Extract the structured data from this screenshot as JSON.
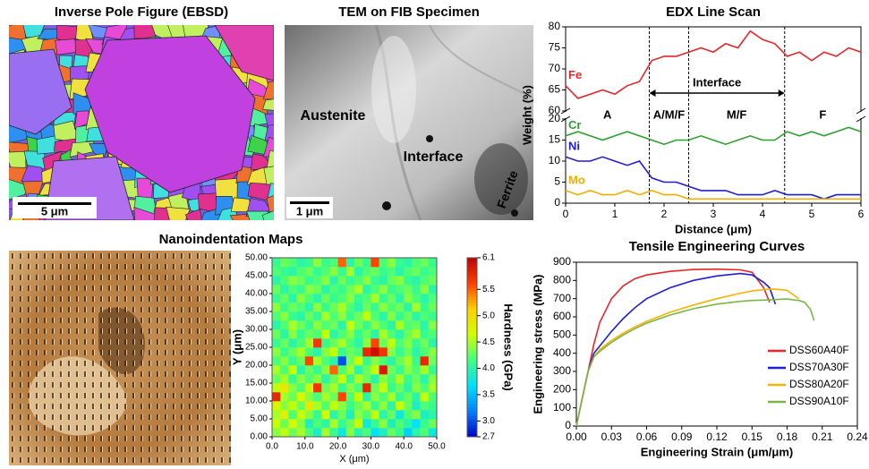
{
  "images": [
    {
      "title": "Inverse Pole Figure (EBSD)",
      "scale_bar": "5 μm"
    },
    {
      "title": "TEM on FIB Specimen",
      "labels": [
        "Austenite",
        "Interface",
        "Ferrite"
      ],
      "scale_bar": "1 μm"
    }
  ],
  "chart_data": [
    {
      "type": "line",
      "title": "EDX Line Scan",
      "xlabel": "Distance (μm)",
      "ylabel": "Weight (%)",
      "x": [
        0,
        0.25,
        0.5,
        0.75,
        1,
        1.25,
        1.5,
        1.75,
        2,
        2.25,
        2.5,
        2.75,
        3,
        3.25,
        3.5,
        3.75,
        4,
        4.25,
        4.5,
        4.75,
        5,
        5.25,
        5.5,
        5.75,
        6
      ],
      "xlim": [
        0,
        6
      ],
      "xticks": [
        0,
        1,
        2,
        3,
        4,
        5,
        6
      ],
      "ylim": [
        0,
        20
      ],
      "yticks": [
        0,
        5,
        10,
        15,
        20
      ],
      "y2lim": [
        60,
        80
      ],
      "y2ticks": [
        60,
        65,
        70,
        75,
        80
      ],
      "series": [
        {
          "name": "Fe",
          "color": "#e8262a",
          "axis": "y2",
          "values": [
            66,
            63,
            64,
            65,
            64,
            66,
            67,
            72,
            73,
            73,
            74,
            75,
            74,
            76,
            75,
            79,
            77,
            76,
            73,
            74,
            72,
            74,
            73,
            75,
            74
          ]
        },
        {
          "name": "Cr",
          "color": "#2ca02c",
          "values": [
            16,
            17,
            16,
            15,
            16,
            17,
            16,
            15,
            14,
            15,
            15,
            16,
            15,
            14,
            15,
            16,
            15,
            15,
            17,
            16,
            17,
            16,
            17,
            18,
            17
          ]
        },
        {
          "name": "Ni",
          "color": "#1f1fd6",
          "values": [
            11,
            10,
            10,
            11,
            10,
            9,
            10,
            6,
            5,
            5,
            4,
            3,
            3,
            3,
            2,
            2,
            2,
            3,
            2,
            2,
            2,
            1,
            2,
            2,
            2
          ]
        },
        {
          "name": "Mo",
          "color": "#f0b000",
          "values": [
            3,
            2,
            3,
            2,
            2,
            3,
            2,
            3,
            2,
            2,
            1,
            1,
            1,
            1,
            1,
            1,
            1,
            1,
            1,
            1,
            1,
            1,
            1,
            1,
            1
          ]
        }
      ],
      "boundaries": [
        1.7,
        2.5,
        4.45
      ],
      "regions": [
        "A",
        "A/M/F",
        "M/F",
        "F"
      ],
      "interface_label": "Interface"
    },
    {
      "type": "heatmap",
      "title": "Nanoindentation Maps",
      "xlabel": "X (μm)",
      "ylabel": "Y (μm)",
      "colorbar_label": "Hardness (GPa)",
      "xlim": [
        0,
        50
      ],
      "ylim": [
        0,
        50
      ],
      "xticks": [
        {
          "value": 0,
          "label": "0.0"
        },
        {
          "value": 10,
          "label": "10.0"
        },
        {
          "value": 20,
          "label": "20.0"
        },
        {
          "value": 30,
          "label": "30.0"
        },
        {
          "value": 40,
          "label": "40.0"
        },
        {
          "value": 50,
          "label": "50.0"
        }
      ],
      "yticks": [
        {
          "value": 0,
          "label": "0.00"
        },
        {
          "value": 5,
          "label": "5.00"
        },
        {
          "value": 10,
          "label": "10.00"
        },
        {
          "value": 15,
          "label": "15.00"
        },
        {
          "value": 20,
          "label": "20.00"
        },
        {
          "value": 25,
          "label": "25.00"
        },
        {
          "value": 30,
          "label": "30.00"
        },
        {
          "value": 35,
          "label": "35.00"
        },
        {
          "value": 40,
          "label": "40.00"
        },
        {
          "value": 45,
          "label": "45.00"
        },
        {
          "value": 50,
          "label": "50.00"
        }
      ],
      "clim": [
        2.7,
        6.1
      ],
      "cticks": [
        6.1,
        5.5,
        {
          "value": 5,
          "label": "5.0"
        },
        4.5,
        {
          "value": 4,
          "label": "4.0"
        },
        3.5,
        {
          "value": 3,
          "label": "3.0"
        },
        2.7
      ],
      "colors": [
        "#0000c8",
        "#0080ff",
        "#00e0ff",
        "#40ff80",
        "#d0ff00",
        "#ffd000",
        "#ff4000",
        "#c00000"
      ],
      "z": [
        [
          4.4,
          4.6,
          4.3,
          4.5,
          4.2,
          3.9,
          4.5,
          4.1,
          3.8,
          4.4,
          4.0,
          4.2,
          3.7,
          3.9,
          4.3,
          4.1,
          3.6,
          4.0,
          4.2,
          3.8
        ],
        [
          4.6,
          4.3,
          4.7,
          4.4,
          3.9,
          4.2,
          4.0,
          4.5,
          4.1,
          4.3,
          4.6,
          3.8,
          4.1,
          4.4,
          3.9,
          4.2,
          4.0,
          3.7,
          4.1,
          4.3
        ],
        [
          4.5,
          4.8,
          4.2,
          4.6,
          4.4,
          4.1,
          4.7,
          4.0,
          4.3,
          3.9,
          4.4,
          4.2,
          4.6,
          4.0,
          4.3,
          3.8,
          4.2,
          4.4,
          3.9,
          4.0
        ],
        [
          4.7,
          4.4,
          4.6,
          4.3,
          4.9,
          4.5,
          4.2,
          4.6,
          4.4,
          4.1,
          4.3,
          4.5,
          4.1,
          4.4,
          4.0,
          4.6,
          4.3,
          3.9,
          4.2,
          4.1
        ],
        [
          5.8,
          4.5,
          4.3,
          4.7,
          4.4,
          4.2,
          4.5,
          4.3,
          5.6,
          4.2,
          4.6,
          4.0,
          4.4,
          4.2,
          4.5,
          4.1,
          4.3,
          4.0,
          4.6,
          4.2
        ],
        [
          4.6,
          4.9,
          4.4,
          4.2,
          4.6,
          5.7,
          4.3,
          4.5,
          4.1,
          4.4,
          4.2,
          5.8,
          4.3,
          4.6,
          4.1,
          4.3,
          4.0,
          4.4,
          4.2,
          4.5
        ],
        [
          4.3,
          4.5,
          4.1,
          4.4,
          4.2,
          4.4,
          4.0,
          4.3,
          4.6,
          4.1,
          4.5,
          4.3,
          4.0,
          4.4,
          4.2,
          4.5,
          4.1,
          4.3,
          4.0,
          4.4
        ],
        [
          4.5,
          4.2,
          4.6,
          4.0,
          4.3,
          4.1,
          4.4,
          5.5,
          4.2,
          4.5,
          4.0,
          4.3,
          4.6,
          5.9,
          4.3,
          4.1,
          4.4,
          4.2,
          4.5,
          4.1
        ],
        [
          4.2,
          4.4,
          4.1,
          4.3,
          5.6,
          4.5,
          4.2,
          4.0,
          3.0,
          4.3,
          4.6,
          4.1,
          4.4,
          4.2,
          4.0,
          4.3,
          4.5,
          4.1,
          5.8,
          4.3
        ],
        [
          4.4,
          4.1,
          4.3,
          4.5,
          4.2,
          4.0,
          4.4,
          4.6,
          4.1,
          4.3,
          4.2,
          5.8,
          6.0,
          5.7,
          4.4,
          4.1,
          4.3,
          4.0,
          4.2,
          4.4
        ],
        [
          4.1,
          4.3,
          4.0,
          4.2,
          4.5,
          5.7,
          4.1,
          4.3,
          4.5,
          4.2,
          4.0,
          4.4,
          5.6,
          4.3,
          4.6,
          4.2,
          4.4,
          4.1,
          4.3,
          4.0
        ],
        [
          4.3,
          4.0,
          4.4,
          4.1,
          4.3,
          4.2,
          4.6,
          4.0,
          4.2,
          4.4,
          4.1,
          4.3,
          4.0,
          4.5,
          4.2,
          4.0,
          4.3,
          4.5,
          4.1,
          4.2
        ],
        [
          4.0,
          4.2,
          4.5,
          4.3,
          4.1,
          4.4,
          4.2,
          4.3,
          4.0,
          4.6,
          4.3,
          4.1,
          4.4,
          4.2,
          4.0,
          4.5,
          4.2,
          4.3,
          4.0,
          4.4
        ],
        [
          4.2,
          4.4,
          4.1,
          4.0,
          4.3,
          4.1,
          4.5,
          4.2,
          4.4,
          4.1,
          4.3,
          4.6,
          4.2,
          4.0,
          4.4,
          4.1,
          4.3,
          4.0,
          4.2,
          4.1
        ],
        [
          4.4,
          4.1,
          4.3,
          4.2,
          4.0,
          4.4,
          4.1,
          4.3,
          4.5,
          4.2,
          4.0,
          4.3,
          4.1,
          4.4,
          4.2,
          4.3,
          4.0,
          4.5,
          4.1,
          4.3
        ],
        [
          4.1,
          4.3,
          4.0,
          4.4,
          4.2,
          4.0,
          4.3,
          4.1,
          4.2,
          4.4,
          4.1,
          4.2,
          4.5,
          4.1,
          4.3,
          4.0,
          4.4,
          4.2,
          4.0,
          4.2
        ],
        [
          4.3,
          4.0,
          4.2,
          4.1,
          4.4,
          4.3,
          4.0,
          4.2,
          4.1,
          4.3,
          4.5,
          4.0,
          4.2,
          4.4,
          4.1,
          4.2,
          4.3,
          4.1,
          4.4,
          4.0
        ],
        [
          4.0,
          4.2,
          4.4,
          4.3,
          4.1,
          4.2,
          4.4,
          4.0,
          4.3,
          4.1,
          4.2,
          4.4,
          4.1,
          4.0,
          4.3,
          4.4,
          4.1,
          4.0,
          4.2,
          4.3
        ],
        [
          4.2,
          4.1,
          4.0,
          4.2,
          4.3,
          4.1,
          4.2,
          4.4,
          4.1,
          4.5,
          4.0,
          4.2,
          4.3,
          4.1,
          4.2,
          4.0,
          4.2,
          4.3,
          4.1,
          4.2
        ],
        [
          4.1,
          4.3,
          4.2,
          4.0,
          4.1,
          4.4,
          4.1,
          4.2,
          5.5,
          4.0,
          4.3,
          4.1,
          5.6,
          4.2,
          4.4,
          4.1,
          4.0,
          4.2,
          4.3,
          4.1
        ]
      ]
    },
    {
      "type": "line",
      "title": "Tensile Engineering Curves",
      "xlabel": "Engineering Strain (μm/μm)",
      "ylabel": "Engineering stress (MPa)",
      "x": [
        0,
        0.005,
        0.01,
        0.015,
        0.02,
        0.03,
        0.04,
        0.05,
        0.06,
        0.08,
        0.1,
        0.12,
        0.14,
        0.15,
        0.16,
        0.165,
        0.17,
        0.18,
        0.19,
        0.195,
        0.2,
        0.203
      ],
      "xlim": [
        0,
        0.24
      ],
      "xticks": [
        {
          "value": 0,
          "label": "0.00"
        },
        0.03,
        0.06,
        0.09,
        0.12,
        0.15,
        0.18,
        0.21,
        0.24
      ],
      "ylim": [
        0,
        900
      ],
      "yticks": [
        0,
        100,
        200,
        300,
        400,
        500,
        600,
        700,
        800,
        900
      ],
      "legend": "lower right",
      "series": [
        {
          "name": "DSS60A40F",
          "color": "#e8262a",
          "values": [
            0,
            150,
            300,
            450,
            570,
            700,
            770,
            810,
            830,
            850,
            860,
            862,
            858,
            845,
            760,
            680,
            null,
            null,
            null,
            null,
            null,
            null
          ]
        },
        {
          "name": "DSS70A30F",
          "color": "#1f1fd6",
          "values": [
            0,
            150,
            300,
            400,
            440,
            520,
            590,
            650,
            700,
            760,
            800,
            825,
            838,
            830,
            790,
            760,
            670,
            null,
            null,
            null,
            null,
            null
          ]
        },
        {
          "name": "DSS80A20F",
          "color": "#f5b400",
          "values": [
            0,
            150,
            300,
            380,
            420,
            470,
            510,
            545,
            575,
            625,
            665,
            700,
            730,
            742,
            750,
            752,
            752,
            745,
            700,
            null,
            null,
            null
          ]
        },
        {
          "name": "DSS90A10F",
          "color": "#7ab648",
          "values": [
            0,
            150,
            300,
            380,
            410,
            460,
            500,
            535,
            565,
            610,
            645,
            670,
            685,
            690,
            692,
            693,
            695,
            698,
            690,
            680,
            640,
            580
          ]
        }
      ]
    }
  ]
}
